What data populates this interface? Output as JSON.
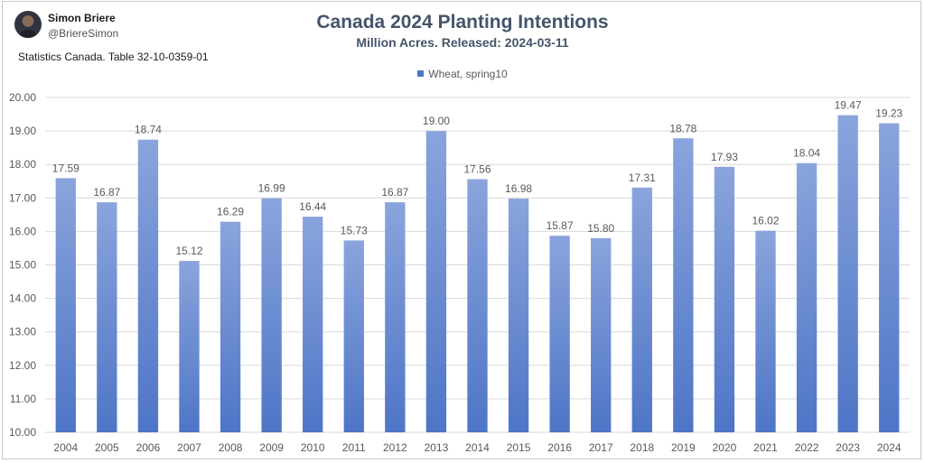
{
  "header": {
    "author_name": "Simon Briere",
    "author_handle": "@BriereSimon",
    "source_note": "Statistics Canada. Table 32-10-0359-01"
  },
  "colors": {
    "bar_top": "#8aa4dc",
    "bar_bottom": "#4e75c6",
    "grid": "#d9d9d9",
    "title": "#44546a",
    "axis_text": "#595959"
  },
  "chart_data": {
    "type": "bar",
    "title": "Canada 2024 Planting Intentions",
    "subtitle": "Million Acres. Released: 2024-03-11",
    "xlabel": "",
    "ylabel": "",
    "legend_position": "top",
    "grid": true,
    "ylim": [
      10,
      20
    ],
    "yticks": [
      "10.00",
      "11.00",
      "12.00",
      "13.00",
      "14.00",
      "15.00",
      "16.00",
      "17.00",
      "18.00",
      "19.00",
      "20.00"
    ],
    "categories": [
      "2004",
      "2005",
      "2006",
      "2007",
      "2008",
      "2009",
      "2010",
      "2011",
      "2012",
      "2013",
      "2014",
      "2015",
      "2016",
      "2017",
      "2018",
      "2019",
      "2020",
      "2021",
      "2022",
      "2023",
      "2024"
    ],
    "series": [
      {
        "name": "Wheat, spring10",
        "values": [
          17.59,
          16.87,
          18.74,
          15.12,
          16.29,
          16.99,
          16.44,
          15.73,
          16.87,
          19.0,
          17.56,
          16.98,
          15.87,
          15.8,
          17.31,
          18.78,
          17.93,
          16.02,
          18.04,
          19.47,
          19.23
        ],
        "labels": [
          "17.59",
          "16.87",
          "18.74",
          "15.12",
          "16.29",
          "16.99",
          "16.44",
          "15.73",
          "16.87",
          "19.00",
          "17.56",
          "16.98",
          "15.87",
          "15.80",
          "17.31",
          "18.78",
          "17.93",
          "16.02",
          "18.04",
          "19.47",
          "19.23"
        ]
      }
    ]
  }
}
